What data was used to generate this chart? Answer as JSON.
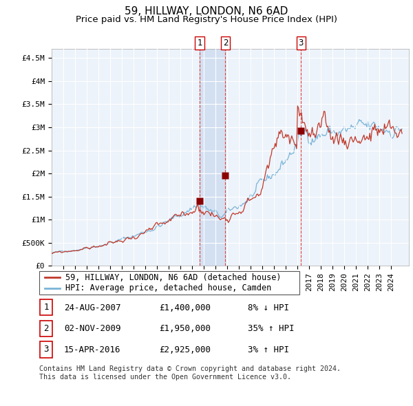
{
  "title": "59, HILLWAY, LONDON, N6 6AD",
  "subtitle": "Price paid vs. HM Land Registry's House Price Index (HPI)",
  "ylabel_ticks": [
    "£0",
    "£500K",
    "£1M",
    "£1.5M",
    "£2M",
    "£2.5M",
    "£3M",
    "£3.5M",
    "£4M",
    "£4.5M"
  ],
  "ytick_values": [
    0,
    500000,
    1000000,
    1500000,
    2000000,
    2500000,
    3000000,
    3500000,
    4000000,
    4500000
  ],
  "ylim": [
    0,
    4700000
  ],
  "xlim_start": 1995.0,
  "xlim_end": 2025.5,
  "sale_dates": [
    2007.646,
    2009.838,
    2016.288
  ],
  "sale_prices": [
    1400000,
    1950000,
    2925000
  ],
  "sale_labels": [
    "1",
    "2",
    "3"
  ],
  "hpi_color": "#7ab4d8",
  "price_color": "#c0392b",
  "sale_dot_color": "#8b0000",
  "vline_color": "#d73027",
  "background_color": "#ffffff",
  "grid_color": "#d0d8e8",
  "chart_bg_color": "#edf3fa",
  "shaded_band_color": "#c8d8f0",
  "legend_entry1": "59, HILLWAY, LONDON, N6 6AD (detached house)",
  "legend_entry2": "HPI: Average price, detached house, Camden",
  "table_data": [
    [
      "1",
      "24-AUG-2007",
      "£1,400,000",
      "8% ↓ HPI"
    ],
    [
      "2",
      "02-NOV-2009",
      "£1,950,000",
      "35% ↑ HPI"
    ],
    [
      "3",
      "15-APR-2016",
      "£2,925,000",
      "3% ↑ HPI"
    ]
  ],
  "footnote": "Contains HM Land Registry data © Crown copyright and database right 2024.\nThis data is licensed under the Open Government Licence v3.0.",
  "title_fontsize": 11,
  "subtitle_fontsize": 9.5,
  "tick_fontsize": 8,
  "label_fontsize": 9
}
